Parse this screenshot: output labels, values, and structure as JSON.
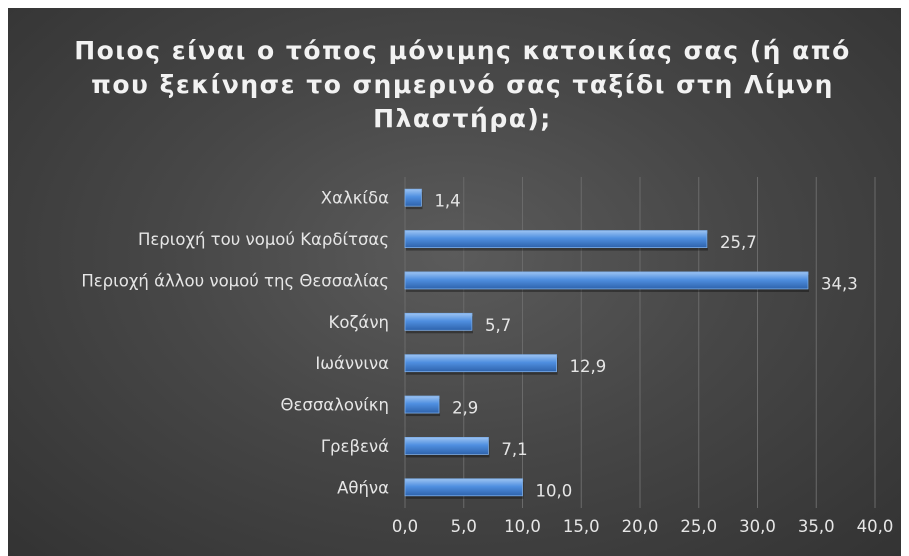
{
  "chart_data": {
    "type": "bar",
    "orientation": "horizontal",
    "title": "Ποιος είναι ο τόπος μόνιμης κατοικίας σας (ή από που ξεκίνησε το σημερινό σας ταξίδι στη Λίμνη Πλαστήρα);",
    "categories": [
      "Χαλκίδα",
      "Περιοχή του νομού Καρδίτσας",
      "Περιοχή άλλου νομού της Θεσσαλίας",
      "Κοζάνη",
      "Ιωάννινα",
      "Θεσσαλονίκη",
      "Γρεβενά",
      "Αθήνα"
    ],
    "values": [
      1.4,
      25.7,
      34.3,
      5.7,
      12.9,
      2.9,
      7.1,
      10.0
    ],
    "value_labels": [
      "1,4",
      "25,7",
      "34,3",
      "5,7",
      "12,9",
      "2,9",
      "7,1",
      "10,0"
    ],
    "xlim": [
      0,
      40
    ],
    "x_ticks": [
      0,
      5,
      10,
      15,
      20,
      25,
      30,
      35,
      40
    ],
    "x_tick_labels": [
      "0,0",
      "5,0",
      "10,0",
      "15,0",
      "20,0",
      "25,0",
      "30,0",
      "35,0",
      "40,0"
    ],
    "grid": "vertical",
    "legend": "none",
    "colors": {
      "bar": "#4f8fe0",
      "bar_light": "#9cc3f2",
      "bar_dark": "#2e63ac",
      "background": "#474747",
      "text": "#e6e6e6",
      "grid": "#6a6a6a"
    }
  }
}
